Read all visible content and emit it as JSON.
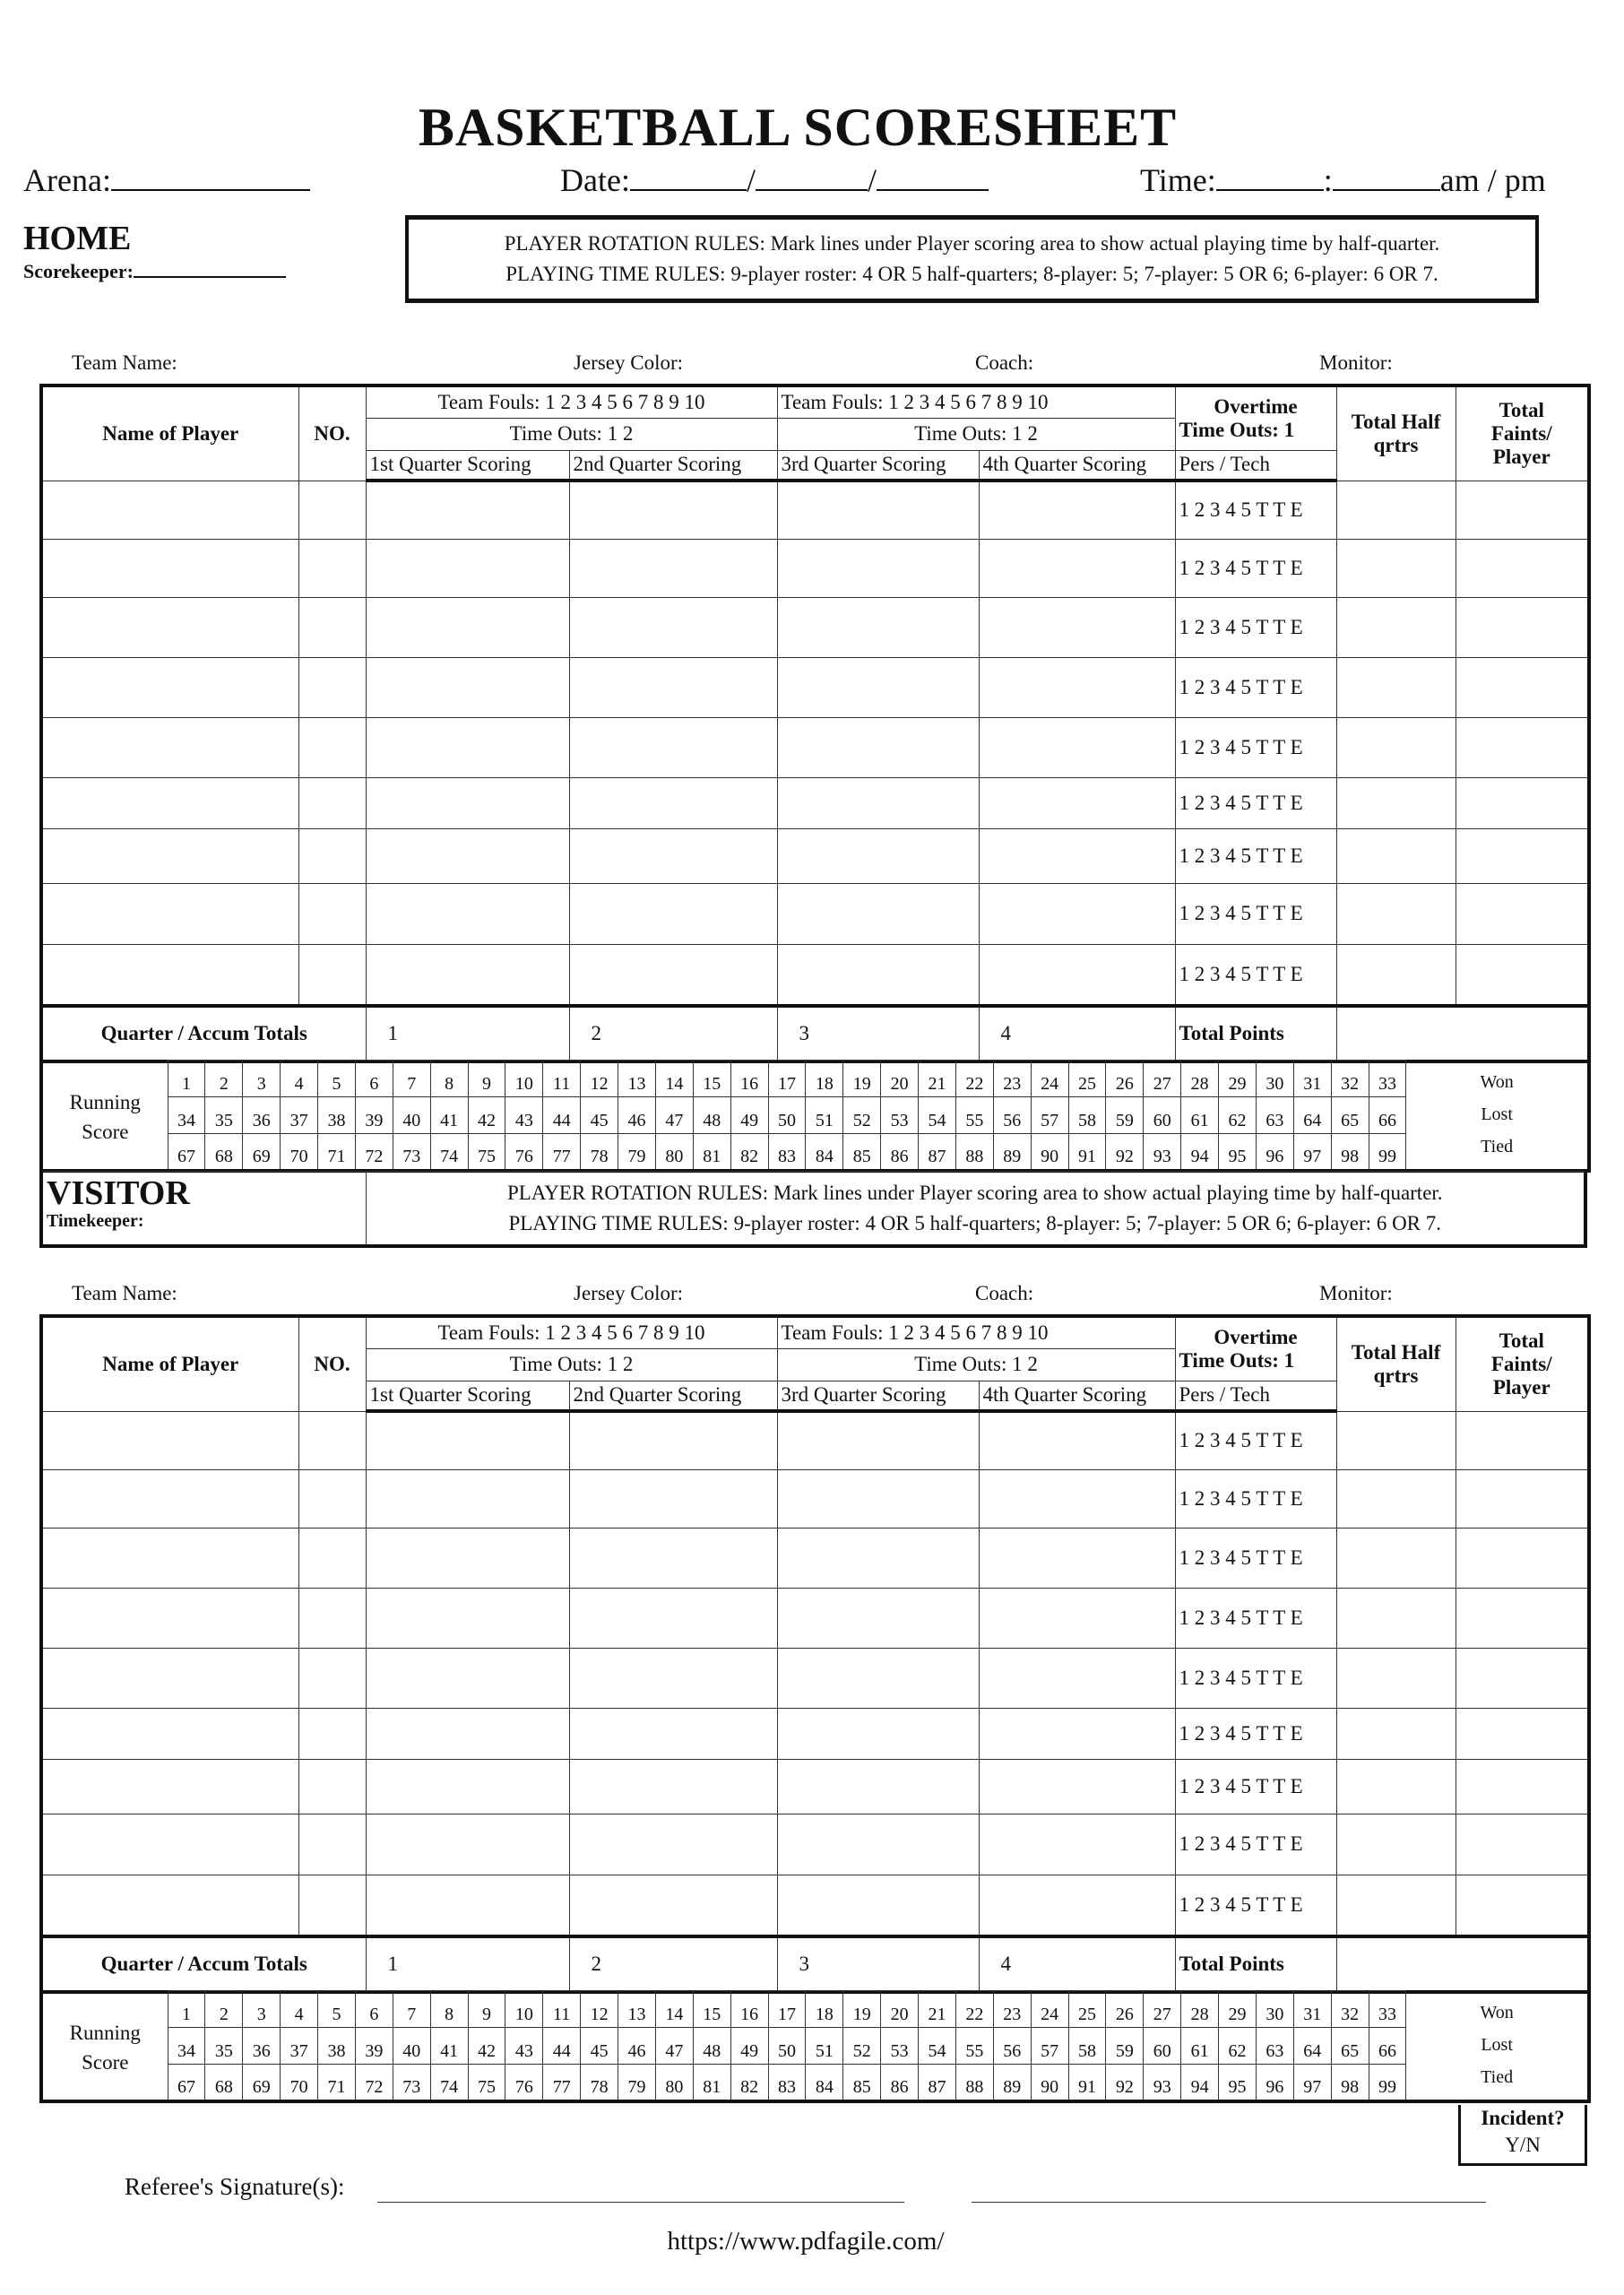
{
  "title": "BASKETBALL SCORESHEET",
  "header": {
    "arena_label": "Arena:",
    "date_label": "Date:",
    "date_sep": "/",
    "time_label": "Time:",
    "time_sep": ":",
    "ampm": "am / pm"
  },
  "home": {
    "label": "HOME",
    "keeper_label": "Scorekeeper:"
  },
  "visitor": {
    "label": "VISITOR",
    "keeper_label": "Timekeeper:"
  },
  "rules": {
    "rotation": "PLAYER ROTATION RULES: Mark lines under Player scoring area to show actual playing time by half-quarter.",
    "playing_time": "PLAYING TIME RULES: 9-player roster:  4 OR 5 half-quarters;  8-player: 5;  7-player: 5 OR 6;  6-player: 6 OR 7."
  },
  "team_info": [
    "Team Name:",
    "Jersey Color:",
    "Coach:",
    "Monitor:"
  ],
  "table_headers": {
    "name": "Name of Player",
    "no": "NO.",
    "team_fouls": "Team Fouls: 1 2 3 4 5 6 7 8 9 10",
    "time_outs": "Time Outs: 1 2",
    "quarters": [
      "1st Quarter Scoring",
      "2nd Quarter Scoring",
      "3rd Quarter Scoring",
      "4th Quarter Scoring"
    ],
    "overtime": "Overtime",
    "ot_time_outs": "Time Outs: 1",
    "pers_tech": "Pers / Tech",
    "total_half": [
      "Total Half",
      "qrtrs"
    ],
    "total_faints": [
      "Total",
      "Faints/",
      "Player"
    ]
  },
  "foul_marks": "1 2 3 4 5 T T E",
  "player_rows": 9,
  "totals": {
    "label": "Quarter / Accum Totals",
    "quarters": [
      "1",
      "2",
      "3",
      "4"
    ],
    "total_points": "Total Points"
  },
  "running_score": {
    "label": [
      "Running",
      "Score"
    ],
    "rows": [
      [
        "1",
        "2",
        "3",
        "4",
        "5",
        "6",
        "7",
        "8",
        "9",
        "10",
        "11",
        "12",
        "13",
        "14",
        "15",
        "16",
        "17",
        "18",
        "19",
        "20",
        "21",
        "22",
        "23",
        "24",
        "25",
        "26",
        "27",
        "28",
        "29",
        "30",
        "31",
        "32",
        "33"
      ],
      [
        "34",
        "35",
        "36",
        "37",
        "38",
        "39",
        "40",
        "41",
        "42",
        "43",
        "44",
        "45",
        "46",
        "47",
        "48",
        "49",
        "50",
        "51",
        "52",
        "53",
        "54",
        "55",
        "56",
        "57",
        "58",
        "59",
        "60",
        "61",
        "62",
        "63",
        "64",
        "65",
        "66"
      ],
      [
        "67",
        "68",
        "69",
        "70",
        "71",
        "72",
        "73",
        "74",
        "75",
        "76",
        "77",
        "78",
        "79",
        "80",
        "81",
        "82",
        "83",
        "84",
        "85",
        "86",
        "87",
        "88",
        "89",
        "90",
        "91",
        "92",
        "93",
        "94",
        "95",
        "96",
        "97",
        "98",
        "99"
      ]
    ],
    "results": [
      "Won",
      "Lost",
      "Tied"
    ]
  },
  "incident": [
    "Incident?",
    "Y/N"
  ],
  "referee_label": "Referee's Signature(s):",
  "url": "https://www.pdfagile.com/"
}
